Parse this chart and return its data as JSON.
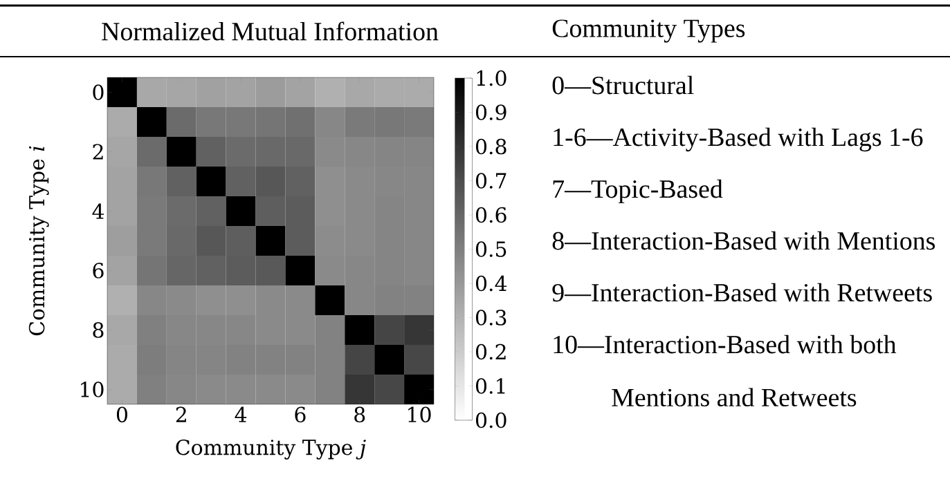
{
  "chart_data": [
    {
      "type": "heatmap",
      "title": "Normalized Mutual Information",
      "xlabel": "Community Type *j*",
      "ylabel": "Community Type *i*",
      "categories": [
        "0",
        null,
        "2",
        null,
        "4",
        null,
        "6",
        null,
        "8",
        null,
        "10"
      ],
      "y_categories": [
        "0",
        null,
        "2",
        null,
        "4",
        null,
        "6",
        null,
        "8",
        null,
        "10"
      ],
      "cells": [
        [
          1.0,
          0.34,
          0.35,
          0.37,
          0.36,
          0.39,
          0.36,
          0.31,
          0.34,
          0.33,
          0.33
        ],
        [
          0.33,
          1.0,
          0.58,
          0.53,
          0.53,
          0.54,
          0.56,
          0.47,
          0.52,
          0.53,
          0.52
        ],
        [
          0.35,
          0.58,
          1.0,
          0.62,
          0.58,
          0.59,
          0.59,
          0.46,
          0.47,
          0.48,
          0.48
        ],
        [
          0.36,
          0.53,
          0.62,
          1.0,
          0.62,
          0.66,
          0.62,
          0.44,
          0.46,
          0.47,
          0.47
        ],
        [
          0.36,
          0.52,
          0.58,
          0.62,
          1.0,
          0.63,
          0.64,
          0.44,
          0.46,
          0.48,
          0.47
        ],
        [
          0.38,
          0.52,
          0.59,
          0.66,
          0.63,
          1.0,
          0.64,
          0.45,
          0.46,
          0.48,
          0.47
        ],
        [
          0.36,
          0.54,
          0.6,
          0.62,
          0.64,
          0.65,
          1.0,
          0.46,
          0.47,
          0.48,
          0.47
        ],
        [
          0.31,
          0.47,
          0.46,
          0.44,
          0.44,
          0.46,
          0.46,
          1.0,
          0.47,
          0.49,
          0.49
        ],
        [
          0.34,
          0.5,
          0.47,
          0.47,
          0.47,
          0.46,
          0.46,
          0.49,
          1.0,
          0.73,
          0.79
        ],
        [
          0.33,
          0.51,
          0.48,
          0.48,
          0.49,
          0.49,
          0.49,
          0.49,
          0.73,
          1.0,
          0.72
        ],
        [
          0.33,
          0.5,
          0.47,
          0.46,
          0.46,
          0.46,
          0.46,
          0.49,
          0.79,
          0.72,
          1.0
        ]
      ],
      "clim": [
        0,
        1
      ],
      "cticks": [
        {
          "value": 0,
          "label": "0.0"
        },
        {
          "value": 0.1,
          "label": "0.1"
        },
        {
          "value": 0.2,
          "label": "0.2"
        },
        {
          "value": 0.3,
          "label": "0.3"
        },
        {
          "value": 0.4,
          "label": "0.4"
        },
        {
          "value": 0.5,
          "label": "0.5"
        },
        {
          "value": 0.6,
          "label": "0.6"
        },
        {
          "value": 0.7,
          "label": "0.7"
        },
        {
          "value": 0.8,
          "label": "0.8"
        },
        {
          "value": 0.9,
          "label": "0.9"
        },
        {
          "value": 1,
          "label": "1.0"
        }
      ]
    },
    {
      "type": "other",
      "title": "Community Types",
      "annotations": [
        "0—Structural",
        "1-6—Activity-Based with Lags 1-6",
        "7—Topic-Based",
        "8—Interaction-Based with Mentions",
        "9—Interaction-Based with Retweets",
        "10—Interaction-Based with both Mentions and Retweets"
      ]
    }
  ]
}
